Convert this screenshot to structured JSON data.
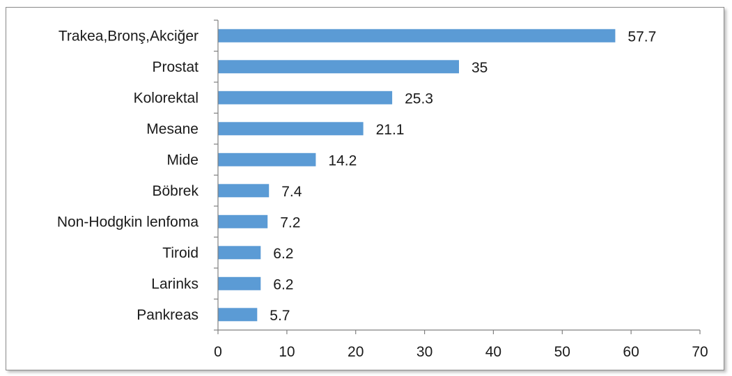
{
  "chart_data": {
    "type": "bar",
    "orientation": "horizontal",
    "categories": [
      "Trakea,Bronş,Akciğer",
      "Prostat",
      "Kolorektal",
      "Mesane",
      "Mide",
      "Böbrek",
      "Non-Hodgkin lenfoma",
      "Tiroid",
      "Larinks",
      "Pankreas"
    ],
    "values": [
      57.7,
      35,
      25.3,
      21.1,
      14.2,
      7.4,
      7.2,
      6.2,
      6.2,
      5.7
    ],
    "value_labels": [
      "57.7",
      "35",
      "25.3",
      "21.1",
      "14.2",
      "7.4",
      "7.2",
      "6.2",
      "6.2",
      "5.7"
    ],
    "x_ticks": [
      "0",
      "10",
      "20",
      "30",
      "40",
      "50",
      "60",
      "70"
    ],
    "xlim": [
      0,
      70
    ],
    "grid": false,
    "bar_color": "#5b9bd5",
    "axis_color": "#808080"
  }
}
